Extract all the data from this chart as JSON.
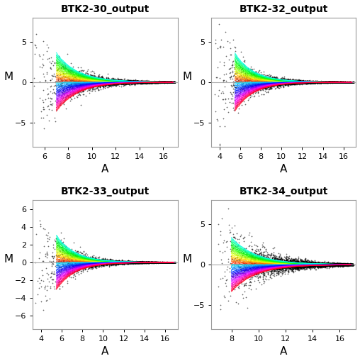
{
  "titles": [
    "BTK2-30_output",
    "BTK2-32_output",
    "BTK2-33_output",
    "BTK2-34_output"
  ],
  "panels": [
    {
      "a_lim": [
        5.0,
        17.2
      ],
      "a_min_data": 5.0,
      "a_max_data": 17.0,
      "xticks": [
        6,
        8,
        10,
        12,
        14,
        16
      ],
      "ylim": [
        -8.0,
        8.0
      ],
      "yticks": [
        -5,
        0,
        5
      ],
      "curve_start_a": 7.0,
      "max_spread": 4.5,
      "n_points": 5000
    },
    {
      "a_lim": [
        3.2,
        17.2
      ],
      "a_min_data": 3.5,
      "a_max_data": 17.0,
      "xticks": [
        4,
        6,
        8,
        10,
        12,
        14,
        16
      ],
      "ylim": [
        -8.0,
        8.0
      ],
      "yticks": [
        -5,
        0,
        5
      ],
      "curve_start_a": 5.5,
      "max_spread": 4.5,
      "n_points": 5000
    },
    {
      "a_lim": [
        3.2,
        17.2
      ],
      "a_min_data": 3.5,
      "a_max_data": 17.0,
      "xticks": [
        4,
        6,
        8,
        10,
        12,
        14,
        16
      ],
      "ylim": [
        -7.5,
        7.0
      ],
      "yticks": [
        -6,
        -4,
        -2,
        0,
        2,
        4,
        6
      ],
      "curve_start_a": 5.5,
      "max_spread": 3.8,
      "n_points": 5000
    },
    {
      "a_lim": [
        6.5,
        17.2
      ],
      "a_min_data": 7.0,
      "a_max_data": 17.0,
      "xticks": [
        8,
        10,
        12,
        14,
        16
      ],
      "ylim": [
        -8.0,
        8.0
      ],
      "yticks": [
        -5,
        0,
        5
      ],
      "curve_start_a": 8.0,
      "max_spread": 4.2,
      "n_points": 5000
    }
  ],
  "n_tips": 48,
  "background": "#ffffff",
  "point_color": "#000000",
  "point_size": 1.5,
  "point_alpha": 0.6,
  "title_fontsize": 10,
  "axis_label_fontsize": 11,
  "tick_fontsize": 8,
  "hline_color": "#aaaaaa",
  "spine_color": "#999999"
}
